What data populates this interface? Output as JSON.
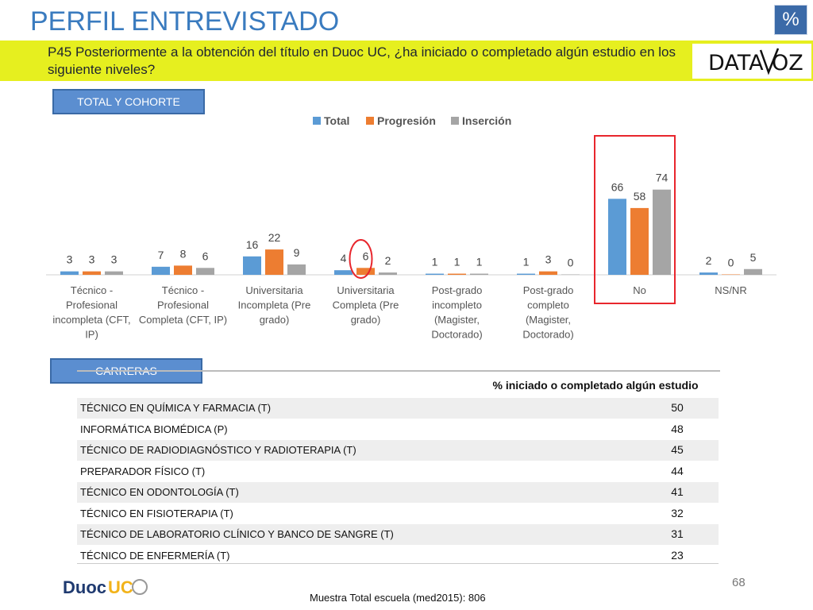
{
  "header": {
    "title": "PERFIL ENTREVISTADO",
    "badge": "%",
    "question": "P45 Posteriormente a la obtención del título en Duoc UC, ¿ha iniciado o completado algún estudio en los siguiente niveles?",
    "logo": "DATA VOZ"
  },
  "sections": {
    "total_label": "TOTAL Y COHORTE",
    "careers_label": "CARRERAS"
  },
  "colors": {
    "total": "#5b9bd5",
    "progresion": "#ed7d31",
    "insercion": "#a5a5a5",
    "highlight": "#e8262d"
  },
  "chart_data": {
    "type": "bar",
    "legend_position": "top",
    "categories": [
      [
        "Técnico -",
        "Profesional",
        "incompleta (CFT,",
        "IP)"
      ],
      [
        "Técnico -",
        "Profesional",
        "Completa (CFT, IP)"
      ],
      [
        "Universitaria",
        "Incompleta (Pre",
        "grado)"
      ],
      [
        "Universitaria",
        "Completa (Pre",
        "grado)"
      ],
      [
        "Post-grado",
        "incompleto",
        "(Magister,",
        "Doctorado)"
      ],
      [
        "Post-grado",
        "completo",
        "(Magister,",
        "Doctorado)"
      ],
      [
        "No"
      ],
      [
        "NS/NR"
      ]
    ],
    "series": [
      {
        "name": "Total",
        "values": [
          3,
          7,
          16,
          4,
          1,
          1,
          66,
          2
        ]
      },
      {
        "name": "Progresión",
        "values": [
          3,
          8,
          22,
          6,
          1,
          3,
          58,
          0
        ]
      },
      {
        "name": "Inserción",
        "values": [
          3,
          6,
          9,
          2,
          1,
          0,
          74,
          5
        ]
      }
    ],
    "highlight_category_index": 6,
    "highlight_circle": {
      "category_index": 3,
      "series_index": 1
    }
  },
  "table": {
    "column_header": "% iniciado o completado algún estudio",
    "rows": [
      {
        "name": "TÉCNICO EN QUÍMICA Y FARMACIA (T)",
        "value": "50"
      },
      {
        "name": "INFORMÁTICA BIOMÉDICA (P)",
        "value": "48"
      },
      {
        "name": "TÉCNICO DE RADIODIAGNÓSTICO Y RADIOTERAPIA (T)",
        "value": "45"
      },
      {
        "name": "PREPARADOR FÍSICO (T)",
        "value": "44"
      },
      {
        "name": "TÉCNICO EN ODONTOLOGÍA (T)",
        "value": "41"
      },
      {
        "name": "TÉCNICO EN FISIOTERAPIA (T)",
        "value": "32"
      },
      {
        "name": "TÉCNICO DE LABORATORIO CLÍNICO Y BANCO DE SANGRE (T)",
        "value": "31"
      },
      {
        "name": "TÉCNICO DE ENFERMERÍA (T)",
        "value": "23"
      }
    ]
  },
  "footer": {
    "page_number": "68",
    "sample_note": "Muestra Total escuela (med2015): 806",
    "duoc_logo": "DuocUC"
  }
}
